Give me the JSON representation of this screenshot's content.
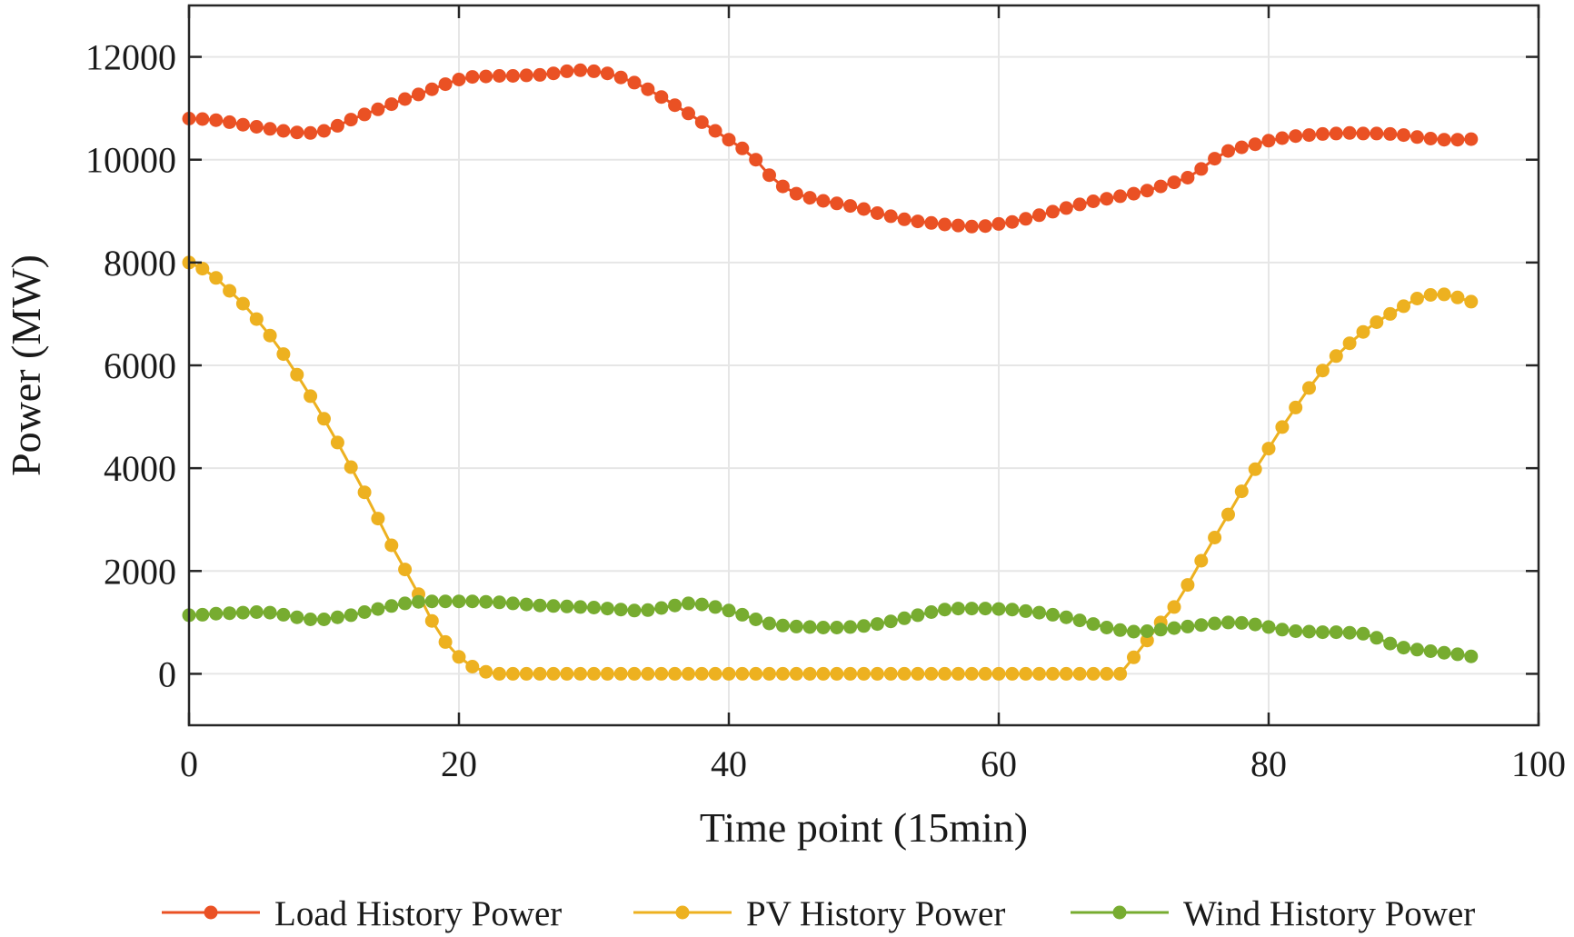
{
  "chart_data": {
    "type": "line",
    "title": "",
    "xlabel": "Time point (15min)",
    "ylabel": "Power (MW)",
    "xlim": [
      0,
      100
    ],
    "ylim": [
      -1000,
      13000
    ],
    "xticks": [
      0,
      20,
      40,
      60,
      80,
      100
    ],
    "yticks": [
      0,
      2000,
      4000,
      6000,
      8000,
      10000,
      12000
    ],
    "grid": true,
    "legend_position": "bottom",
    "series": [
      {
        "name": "Load History Power",
        "color": "#EA5124",
        "marker": "circle",
        "x_start": 0,
        "x_step": 1,
        "values": [
          10800,
          10790,
          10770,
          10730,
          10680,
          10640,
          10600,
          10560,
          10530,
          10520,
          10560,
          10660,
          10780,
          10880,
          10980,
          11080,
          11180,
          11270,
          11370,
          11470,
          11560,
          11610,
          11620,
          11630,
          11630,
          11640,
          11650,
          11680,
          11720,
          11740,
          11720,
          11680,
          11600,
          11500,
          11370,
          11220,
          11060,
          10900,
          10730,
          10560,
          10390,
          10220,
          10000,
          9700,
          9480,
          9340,
          9260,
          9200,
          9150,
          9100,
          9040,
          8960,
          8900,
          8840,
          8800,
          8770,
          8740,
          8720,
          8700,
          8710,
          8750,
          8790,
          8850,
          8920,
          8990,
          9060,
          9130,
          9190,
          9240,
          9290,
          9340,
          9400,
          9480,
          9560,
          9650,
          9820,
          10020,
          10170,
          10240,
          10300,
          10370,
          10420,
          10460,
          10480,
          10500,
          10510,
          10520,
          10510,
          10510,
          10500,
          10480,
          10440,
          10410,
          10390,
          10390,
          10400
        ]
      },
      {
        "name": "PV History Power",
        "color": "#EDB120",
        "marker": "circle",
        "x_start": 0,
        "x_step": 1,
        "values": [
          8000,
          7880,
          7700,
          7450,
          7200,
          6900,
          6580,
          6220,
          5820,
          5400,
          4960,
          4500,
          4020,
          3530,
          3020,
          2500,
          2030,
          1550,
          1030,
          620,
          330,
          140,
          40,
          0,
          0,
          0,
          0,
          0,
          0,
          0,
          0,
          0,
          0,
          0,
          0,
          0,
          0,
          0,
          0,
          0,
          0,
          0,
          0,
          0,
          0,
          0,
          0,
          0,
          0,
          0,
          0,
          0,
          0,
          0,
          0,
          0,
          0,
          0,
          0,
          0,
          0,
          0,
          0,
          0,
          0,
          0,
          0,
          0,
          0,
          0,
          320,
          650,
          1000,
          1300,
          1730,
          2200,
          2650,
          3100,
          3550,
          3980,
          4380,
          4800,
          5180,
          5560,
          5900,
          6180,
          6430,
          6650,
          6840,
          7000,
          7150,
          7300,
          7370,
          7380,
          7320,
          7240
        ]
      },
      {
        "name": "Wind History Power",
        "color": "#77AC30",
        "marker": "circle",
        "x_start": 0,
        "x_step": 1,
        "values": [
          1140,
          1150,
          1170,
          1180,
          1190,
          1200,
          1190,
          1150,
          1100,
          1060,
          1060,
          1100,
          1140,
          1200,
          1260,
          1320,
          1370,
          1400,
          1410,
          1410,
          1410,
          1410,
          1400,
          1390,
          1370,
          1350,
          1330,
          1320,
          1310,
          1300,
          1290,
          1270,
          1250,
          1230,
          1240,
          1280,
          1330,
          1370,
          1350,
          1300,
          1230,
          1150,
          1060,
          980,
          940,
          920,
          910,
          900,
          900,
          910,
          930,
          970,
          1020,
          1080,
          1140,
          1200,
          1250,
          1270,
          1270,
          1270,
          1260,
          1250,
          1220,
          1190,
          1150,
          1100,
          1040,
          970,
          900,
          850,
          820,
          830,
          860,
          890,
          920,
          950,
          980,
          1000,
          990,
          960,
          910,
          860,
          830,
          820,
          810,
          810,
          800,
          780,
          700,
          590,
          510,
          470,
          440,
          410,
          380,
          340
        ]
      }
    ]
  }
}
